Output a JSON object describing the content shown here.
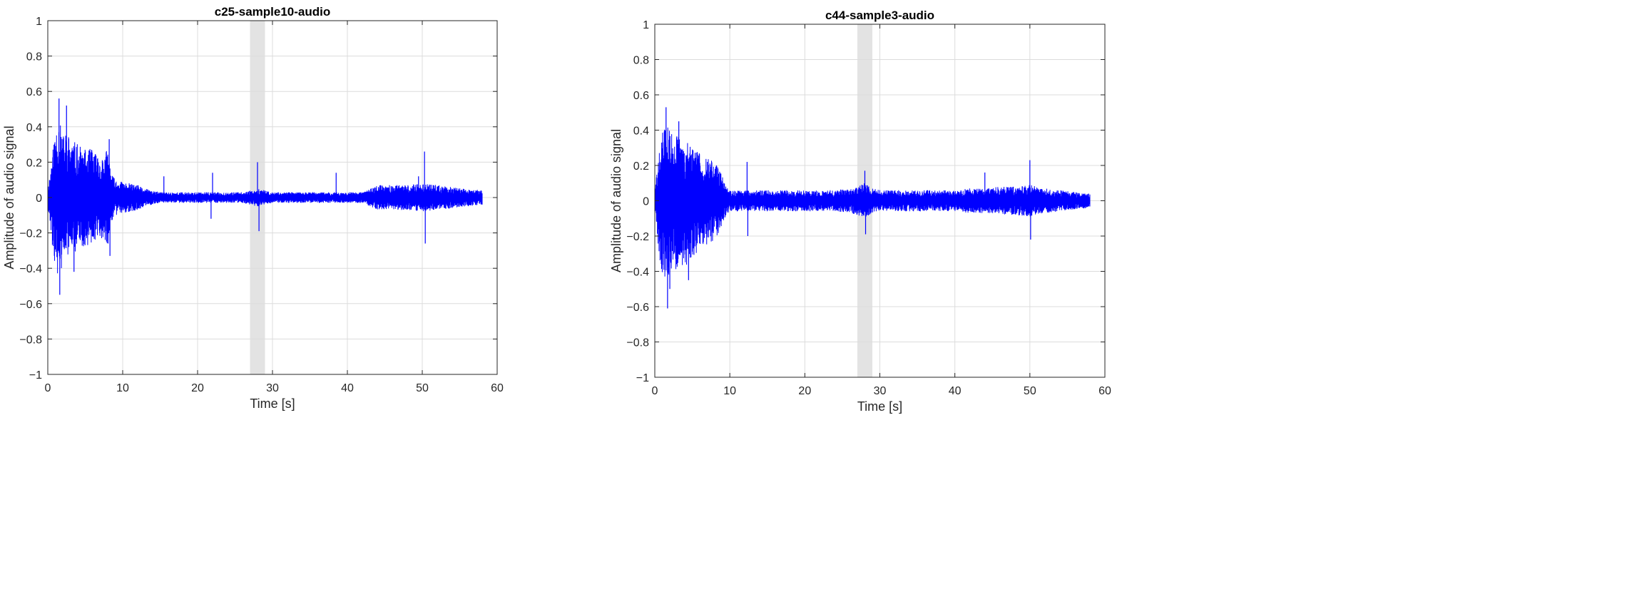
{
  "colors": {
    "signal": "#0000ff",
    "highlight": "#e3e3e3",
    "grid": "#dcdcdc",
    "axis": "#262626",
    "background": "#ffffff"
  },
  "chart_data": [
    {
      "type": "line",
      "title": "c25-sample10-audio",
      "xlabel": "Time [s]",
      "ylabel": "Amplitude of audio signal",
      "xlim": [
        0,
        60
      ],
      "ylim": [
        -1,
        1
      ],
      "xticks": [
        "0",
        "10",
        "20",
        "30",
        "40",
        "50",
        "60"
      ],
      "yticks": [
        "1",
        "0.8",
        "0.6",
        "0.4",
        "0.2",
        "0",
        "−0.2",
        "−0.4",
        "−0.6",
        "−0.8",
        "−1"
      ],
      "grid": true,
      "highlight_band": [
        27,
        29
      ],
      "series": [
        {
          "color": "#0000ff",
          "signal_end": 58,
          "envelope": {
            "t": [
              0,
              0.5,
              1,
              1.5,
              2,
              2.5,
              3,
              4,
              5,
              6,
              7,
              8,
              8.5,
              9,
              10,
              11,
              12,
              13,
              14,
              15,
              16,
              18,
              20,
              22,
              24,
              26,
              27,
              28,
              29,
              30,
              32,
              34,
              36,
              38,
              40,
              42,
              43,
              44,
              46,
              48,
              50,
              52,
              54,
              56,
              58
            ],
            "upper": [
              0.05,
              0.2,
              0.4,
              0.45,
              0.35,
              0.38,
              0.34,
              0.3,
              0.27,
              0.28,
              0.22,
              0.28,
              0.14,
              0.1,
              0.09,
              0.08,
              0.07,
              0.05,
              0.04,
              0.03,
              0.03,
              0.03,
              0.03,
              0.03,
              0.03,
              0.03,
              0.04,
              0.05,
              0.04,
              0.03,
              0.03,
              0.03,
              0.03,
              0.03,
              0.03,
              0.03,
              0.05,
              0.07,
              0.07,
              0.07,
              0.08,
              0.07,
              0.06,
              0.05,
              0.04
            ],
            "lower": [
              -0.05,
              -0.25,
              -0.4,
              -0.45,
              -0.38,
              -0.35,
              -0.32,
              -0.3,
              -0.28,
              -0.25,
              -0.22,
              -0.28,
              -0.14,
              -0.1,
              -0.09,
              -0.08,
              -0.07,
              -0.05,
              -0.04,
              -0.03,
              -0.03,
              -0.03,
              -0.03,
              -0.03,
              -0.03,
              -0.03,
              -0.04,
              -0.05,
              -0.04,
              -0.03,
              -0.03,
              -0.03,
              -0.03,
              -0.03,
              -0.03,
              -0.03,
              -0.05,
              -0.07,
              -0.07,
              -0.07,
              -0.08,
              -0.07,
              -0.06,
              -0.05,
              -0.04
            ]
          },
          "peaks": [
            {
              "x": 1.5,
              "y": 0.56
            },
            {
              "x": 1.6,
              "y": -0.55
            },
            {
              "x": 2.5,
              "y": 0.52
            },
            {
              "x": 3.5,
              "y": -0.42
            },
            {
              "x": 8.2,
              "y": 0.33
            },
            {
              "x": 8.3,
              "y": -0.33
            },
            {
              "x": 15.5,
              "y": 0.12
            },
            {
              "x": 21.8,
              "y": -0.12
            },
            {
              "x": 22.0,
              "y": 0.14
            },
            {
              "x": 28.0,
              "y": 0.2
            },
            {
              "x": 28.2,
              "y": -0.19
            },
            {
              "x": 38.5,
              "y": 0.14
            },
            {
              "x": 50.3,
              "y": 0.26
            },
            {
              "x": 50.4,
              "y": -0.26
            },
            {
              "x": 49.5,
              "y": 0.12
            }
          ]
        }
      ]
    },
    {
      "type": "line",
      "title": "c44-sample3-audio",
      "xlabel": "Time [s]",
      "ylabel": "Amplitude of audio signal",
      "xlim": [
        0,
        60
      ],
      "ylim": [
        -1,
        1
      ],
      "xticks": [
        "0",
        "10",
        "20",
        "30",
        "40",
        "50",
        "60"
      ],
      "yticks": [
        "1",
        "0.8",
        "0.6",
        "0.4",
        "0.2",
        "0",
        "−0.2",
        "−0.4",
        "−0.6",
        "−0.8",
        "−1"
      ],
      "grid": true,
      "highlight_band": [
        27,
        29
      ],
      "series": [
        {
          "color": "#0000ff",
          "signal_end": 58,
          "envelope": {
            "t": [
              0,
              0.5,
              1,
              1.5,
              2,
              3,
              4,
              5,
              6,
              7,
              8,
              9,
              9.5,
              10,
              11,
              12,
              13,
              14,
              16,
              18,
              20,
              22,
              24,
              26,
              27,
              28,
              29,
              30,
              32,
              34,
              36,
              38,
              40,
              42,
              44,
              46,
              48,
              50,
              52,
              54,
              56,
              58
            ],
            "upper": [
              0.05,
              0.25,
              0.4,
              0.44,
              0.4,
              0.38,
              0.35,
              0.3,
              0.28,
              0.25,
              0.22,
              0.15,
              0.08,
              0.06,
              0.06,
              0.06,
              0.06,
              0.06,
              0.06,
              0.06,
              0.06,
              0.06,
              0.06,
              0.07,
              0.08,
              0.1,
              0.07,
              0.06,
              0.06,
              0.06,
              0.06,
              0.06,
              0.06,
              0.07,
              0.07,
              0.08,
              0.08,
              0.09,
              0.07,
              0.06,
              0.05,
              0.04
            ],
            "lower": [
              -0.05,
              -0.3,
              -0.42,
              -0.45,
              -0.42,
              -0.4,
              -0.38,
              -0.32,
              -0.28,
              -0.25,
              -0.22,
              -0.15,
              -0.08,
              -0.06,
              -0.06,
              -0.06,
              -0.06,
              -0.06,
              -0.06,
              -0.06,
              -0.06,
              -0.06,
              -0.06,
              -0.07,
              -0.08,
              -0.1,
              -0.07,
              -0.06,
              -0.06,
              -0.06,
              -0.06,
              -0.06,
              -0.06,
              -0.07,
              -0.07,
              -0.08,
              -0.08,
              -0.09,
              -0.07,
              -0.06,
              -0.05,
              -0.04
            ]
          },
          "peaks": [
            {
              "x": 1.5,
              "y": 0.53
            },
            {
              "x": 1.7,
              "y": -0.61
            },
            {
              "x": 2.0,
              "y": -0.5
            },
            {
              "x": 3.2,
              "y": 0.45
            },
            {
              "x": 4.5,
              "y": -0.45
            },
            {
              "x": 12.3,
              "y": 0.22
            },
            {
              "x": 12.4,
              "y": -0.2
            },
            {
              "x": 28.0,
              "y": 0.17
            },
            {
              "x": 28.1,
              "y": -0.19
            },
            {
              "x": 44.0,
              "y": 0.16
            },
            {
              "x": 50.0,
              "y": 0.23
            },
            {
              "x": 50.1,
              "y": -0.22
            }
          ]
        }
      ]
    }
  ]
}
